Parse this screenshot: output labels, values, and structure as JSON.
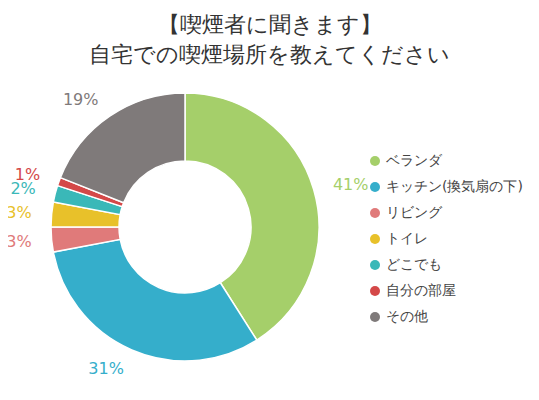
{
  "chart_data": {
    "type": "pie",
    "title": "【喫煙者に聞きます】",
    "subtitle": "自宅での喫煙場所を教えてください",
    "categories": [
      "ベランダ",
      "キッチン(換気扇の下)",
      "リビング",
      "トイレ",
      "どこでも",
      "自分の部屋",
      "その他"
    ],
    "values": [
      41,
      31,
      3,
      3,
      2,
      1,
      19
    ],
    "value_labels": [
      "41%",
      "31%",
      "3%",
      "3%",
      "2%",
      "1%",
      "19%"
    ],
    "colors": [
      "#a5cf6a",
      "#35aecb",
      "#e07a7a",
      "#e8c12a",
      "#3ab8b8",
      "#d44848",
      "#7f7a7a"
    ],
    "data_labels": true,
    "legend": "right"
  }
}
